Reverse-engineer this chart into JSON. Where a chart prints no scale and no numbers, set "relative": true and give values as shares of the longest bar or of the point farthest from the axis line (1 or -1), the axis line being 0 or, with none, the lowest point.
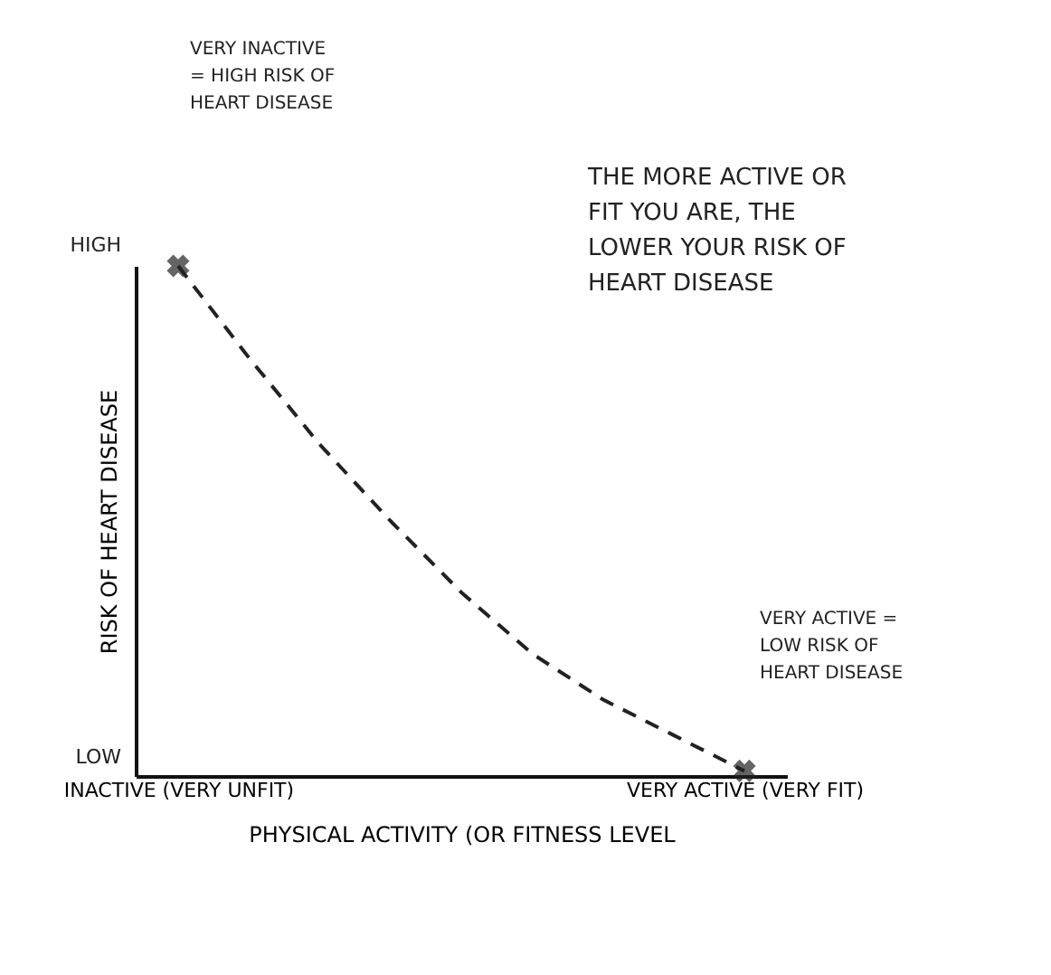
{
  "chart_data": {
    "type": "line",
    "relative": true,
    "xlabel": "PHYSICAL ACTIVITY (OR FITNESS LEVEL",
    "ylabel": "RISK OF HEART DISEASE",
    "categories": [
      "INACTIVE (VERY UNFIT)",
      null,
      null,
      null,
      null,
      null,
      null,
      null,
      "VERY ACTIVE (VERY FIT)"
    ],
    "series": [
      {
        "color": "#222222",
        "line_style": "dashed",
        "values": [
          1,
          0.82,
          0.65,
          0.5,
          0.36,
          0.24,
          0.15,
          0.08,
          0.01
        ]
      },
      {
        "type": "scatter",
        "color": "#222222",
        "marker": "cross",
        "values": [
          1,
          null,
          null,
          null,
          null,
          null,
          null,
          null,
          0.01
        ]
      }
    ],
    "annotations": [
      "THE MORE ACTIVE OR FIT YOU ARE, THE LOWER YOUR RISK OF HEART DISEASE",
      "VERY INACTIVE = HIGH RISK OF HEART DISEASE",
      "VERY ACTIVE = LOW RISK OF HEART DISEASE",
      "HIGH",
      "LOW"
    ]
  }
}
